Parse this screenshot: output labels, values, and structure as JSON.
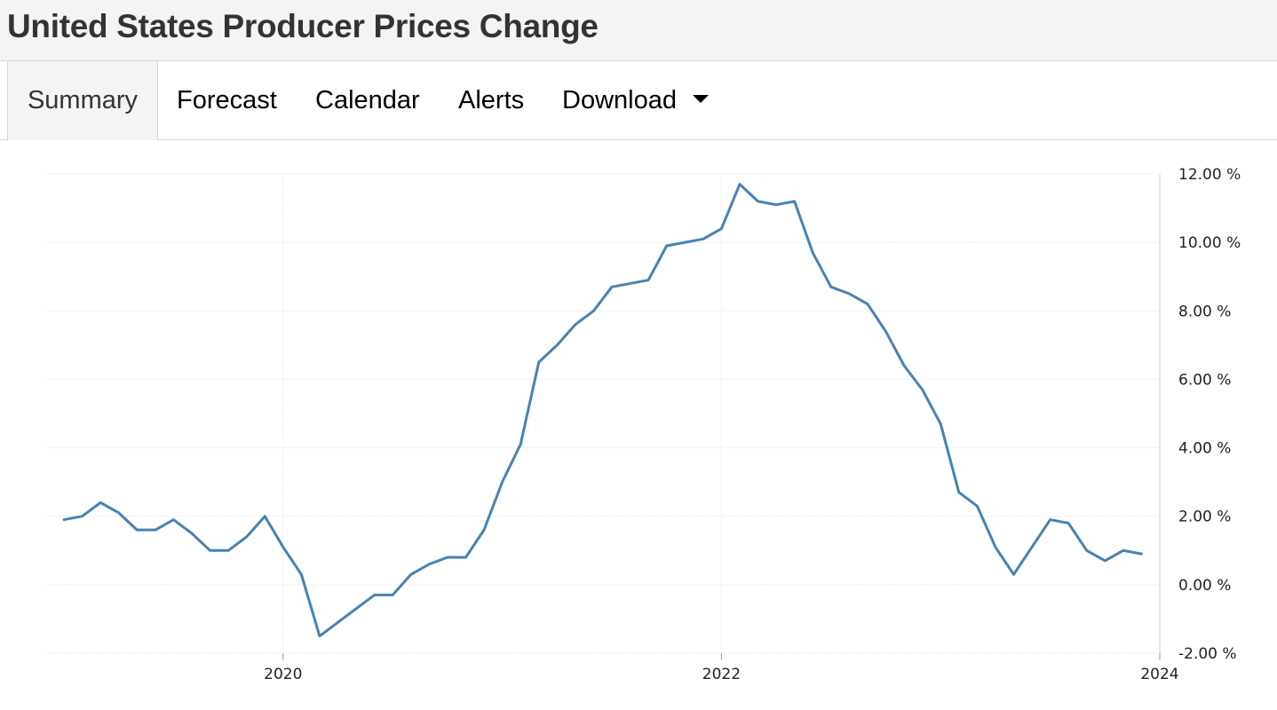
{
  "header": {
    "title": "United States Producer Prices Change"
  },
  "tabs": [
    {
      "label": "Summary",
      "active": true
    },
    {
      "label": "Forecast"
    },
    {
      "label": "Calendar"
    },
    {
      "label": "Alerts"
    },
    {
      "label": "Download",
      "icon": "caret-down-icon"
    }
  ],
  "colors": {
    "line": "#4682b4",
    "grid": "#e6e6e6",
    "header_bg": "#f4f4f4"
  },
  "chart_data": {
    "type": "line",
    "title": "",
    "xlabel": "",
    "ylabel": "",
    "ylim": [
      -2,
      12
    ],
    "xlim": [
      "2019-01",
      "2024-01"
    ],
    "grid": true,
    "y_axis_side": "right",
    "y_ticks": [
      {
        "value": 12,
        "label": "12.00 %"
      },
      {
        "value": 10,
        "label": "10.00 %"
      },
      {
        "value": 8,
        "label": "8.00 %"
      },
      {
        "value": 6,
        "label": "6.00 %"
      },
      {
        "value": 4,
        "label": "4.00 %"
      },
      {
        "value": 2,
        "label": "2.00 %"
      },
      {
        "value": 0,
        "label": "0.00 %"
      },
      {
        "value": -2,
        "label": "-2.00 %"
      }
    ],
    "x_ticks": [
      {
        "value": "2020-01",
        "label": "2020"
      },
      {
        "value": "2022-01",
        "label": "2022"
      },
      {
        "value": "2024-01",
        "label": "2024"
      }
    ],
    "series": [
      {
        "x": [
          "2019-01",
          "2019-02",
          "2019-03",
          "2019-04",
          "2019-05",
          "2019-06",
          "2019-07",
          "2019-08",
          "2019-09",
          "2019-10",
          "2019-11",
          "2019-12",
          "2020-01",
          "2020-02",
          "2020-03",
          "2020-04",
          "2020-05",
          "2020-06",
          "2020-07",
          "2020-08",
          "2020-09",
          "2020-10",
          "2020-11",
          "2020-12",
          "2021-01",
          "2021-02",
          "2021-03",
          "2021-04",
          "2021-05",
          "2021-06",
          "2021-07",
          "2021-08",
          "2021-09",
          "2021-10",
          "2021-11",
          "2021-12",
          "2022-01",
          "2022-02",
          "2022-03",
          "2022-04",
          "2022-05",
          "2022-06",
          "2022-07",
          "2022-08",
          "2022-09",
          "2022-10",
          "2022-11",
          "2022-12",
          "2023-01",
          "2023-02",
          "2023-03",
          "2023-04",
          "2023-05",
          "2023-06",
          "2023-07",
          "2023-08",
          "2023-09",
          "2023-10",
          "2023-11",
          "2023-12"
        ],
        "values": [
          1.9,
          2.0,
          2.4,
          2.1,
          1.6,
          1.6,
          1.9,
          1.5,
          1.0,
          1.0,
          1.4,
          2.0,
          1.1,
          0.3,
          -1.5,
          -1.1,
          -0.7,
          -0.3,
          -0.3,
          0.3,
          0.6,
          0.8,
          0.8,
          1.6,
          3.0,
          4.1,
          6.5,
          7.0,
          7.6,
          8.0,
          8.7,
          8.8,
          8.9,
          9.9,
          10.0,
          10.1,
          10.4,
          11.7,
          11.2,
          11.1,
          11.2,
          9.7,
          8.7,
          8.5,
          8.2,
          7.4,
          6.4,
          5.7,
          4.7,
          2.7,
          2.3,
          1.1,
          0.3,
          1.1,
          1.9,
          1.8,
          1.0,
          0.7,
          1.0,
          0.9
        ]
      }
    ]
  }
}
